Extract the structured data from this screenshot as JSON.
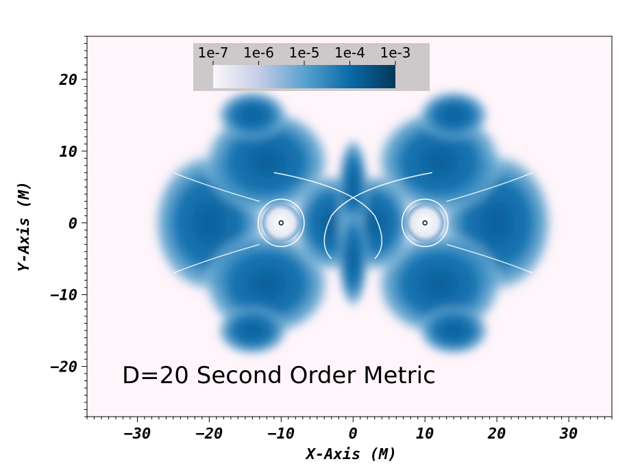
{
  "chart_data": {
    "type": "heatmap",
    "title": "",
    "xlabel": "X-Axis (M)",
    "ylabel": "Y-Axis (M)",
    "xlim": [
      -37,
      36
    ],
    "ylim": [
      -27,
      26
    ],
    "x_ticks": [
      -30,
      -20,
      -10,
      0,
      10,
      20,
      30
    ],
    "y_ticks": [
      -20,
      -10,
      0,
      10,
      20
    ],
    "x_tick_labels": [
      "−30",
      "−20",
      "−10",
      "0",
      "10",
      "20",
      "30"
    ],
    "y_tick_labels": [
      "−20",
      "−10",
      "0",
      "10",
      "20"
    ],
    "colorbar": {
      "scale": "log",
      "range": [
        1e-07,
        0.001
      ],
      "ticks": [
        "1e-7",
        "1e-6",
        "1e-5",
        "1e-4",
        "1e-3"
      ],
      "colors": [
        "#fbf7fb",
        "#a9bddb",
        "#3a8fc0",
        "#0768a8",
        "#023858"
      ]
    },
    "sources": [
      {
        "x": -10,
        "y": 0
      },
      {
        "x": 10,
        "y": 0
      }
    ],
    "annotation": "D=20 Second Order Metric",
    "background_color": "#fff5fb",
    "grid": false
  }
}
